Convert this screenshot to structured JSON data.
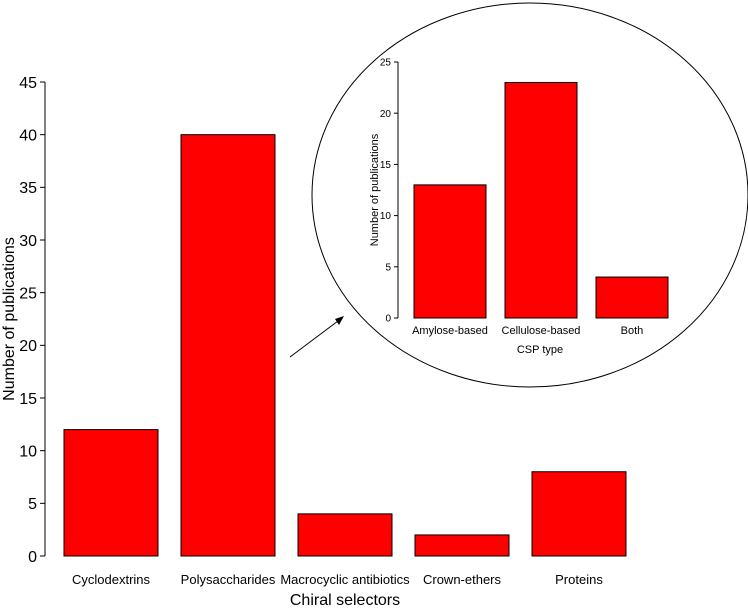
{
  "chart_data": [
    {
      "type": "bar",
      "title": "",
      "xlabel": "Chiral selectors",
      "ylabel": "Number of publications",
      "categories": [
        "Cyclodextrins",
        "Polysaccharides",
        "Macrocyclic antibiotics",
        "Crown-ethers",
        "Proteins"
      ],
      "values": [
        12,
        40,
        4,
        2,
        8
      ],
      "ylim": [
        0,
        45
      ],
      "yticks": [
        0,
        5,
        10,
        15,
        20,
        25,
        30,
        35,
        40,
        45
      ],
      "color": "#ff0000"
    },
    {
      "type": "bar",
      "title": "",
      "xlabel": "CSP type",
      "ylabel": "Number of publications",
      "categories": [
        "Amylose-based",
        "Cellulose-based",
        "Both"
      ],
      "values": [
        13,
        23,
        4
      ],
      "ylim": [
        0,
        25
      ],
      "yticks": [
        0,
        5,
        10,
        15,
        20,
        25
      ],
      "color": "#ff0000",
      "inset_of": "Polysaccharides"
    }
  ]
}
